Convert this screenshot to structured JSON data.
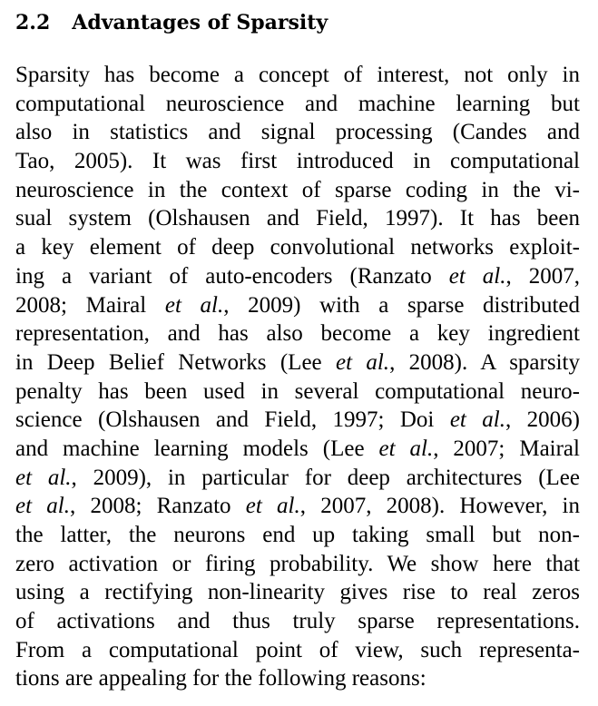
{
  "section": {
    "number": "2.2",
    "title": "Advantages of Sparsity"
  },
  "paragraph": {
    "lines": [
      "Sparsity has become a concept of interest, not only in",
      "computational neuroscience and machine learning but",
      "also in statistics and signal processing (Candes and",
      "Tao, 2005).  It was first introduced in computational",
      "neuroscience in the context of sparse coding in the vi-",
      "sual system (Olshausen and Field, 1997).  It has been",
      "a key element of deep convolutional networks exploit-",
      "ing a variant of auto-encoders (Ranzato <i>et al.</i>, 2007,",
      "2008; Mairal <i>et al.</i>, 2009) with a sparse distributed",
      "representation, and has also become a key ingredient",
      "in Deep Belief Networks (Lee <i>et al.</i>, 2008).  A sparsity",
      "penalty has been used in several computational neuro-",
      "science (Olshausen and Field, 1997; Doi <i>et al.</i>, 2006)",
      "and machine learning models (Lee <i>et al.</i>, 2007; Mairal",
      "<i>et al.</i>, 2009), in particular for deep architectures (Lee",
      "<i>et al.</i>, 2008; Ranzato <i>et al.</i>, 2007, 2008).  However, in",
      "the latter, the neurons end up taking small but non-",
      "zero activation or firing probability.  We show here that",
      "using a rectifying non-linearity gives rise to real zeros",
      "of activations and thus truly sparse representations.",
      "From a computational point of view, such representa-",
      "tions are appealing for the following reasons:"
    ]
  }
}
